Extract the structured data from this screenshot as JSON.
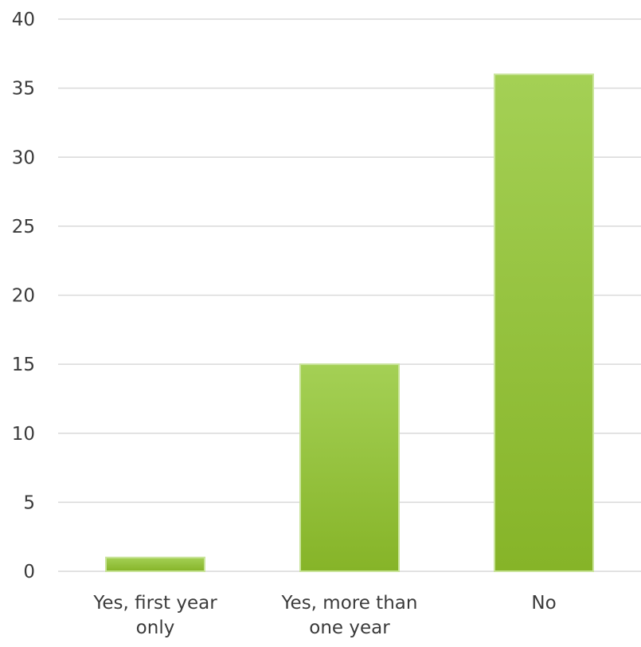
{
  "chart_data": {
    "type": "bar",
    "categories": [
      "Yes, first year only",
      "Yes, more than one year",
      "No"
    ],
    "category_lines": [
      [
        "Yes, first year",
        "only"
      ],
      [
        "Yes, more than",
        "one year"
      ],
      [
        "No"
      ]
    ],
    "values": [
      1,
      15,
      36
    ],
    "ylim": [
      0,
      40
    ],
    "yticks": [
      0,
      5,
      10,
      15,
      20,
      25,
      30,
      35,
      40
    ],
    "grid": true,
    "legend": "none",
    "colors": {
      "bar_top": "#a4d055",
      "bar_bottom": "#86b428",
      "bar_edge": "#c9e49a"
    }
  }
}
